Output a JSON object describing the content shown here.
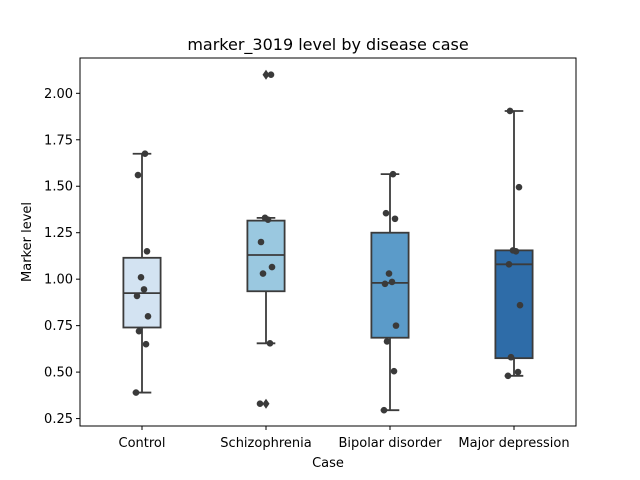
{
  "chart_data": {
    "type": "box",
    "title": "marker_3019 level by disease case",
    "xlabel": "Case",
    "ylabel": "Marker level",
    "ylim": [
      0.21,
      2.19
    ],
    "yticks": [
      "0.25",
      "0.50",
      "0.75",
      "1.00",
      "1.25",
      "1.50",
      "1.75",
      "2.00"
    ],
    "ytick_values": [
      0.25,
      0.5,
      0.75,
      1.0,
      1.25,
      1.5,
      1.75,
      2.0
    ],
    "grid": false,
    "categories": [
      "Control",
      "Schizophrenia",
      "Bipolar disorder",
      "Major depression"
    ],
    "colors": [
      "#d3e3f2",
      "#9ac8e0",
      "#5b9bc9",
      "#2e6ca8"
    ],
    "boxes": [
      {
        "q1": 0.74,
        "median": 0.925,
        "q3": 1.115,
        "whisker_low": 0.39,
        "whisker_high": 1.675,
        "outliers": []
      },
      {
        "q1": 0.935,
        "median": 1.13,
        "q3": 1.315,
        "whisker_low": 0.655,
        "whisker_high": 1.33,
        "outliers": [
          2.1,
          0.33
        ]
      },
      {
        "q1": 0.685,
        "median": 0.98,
        "q3": 1.25,
        "whisker_low": 0.295,
        "whisker_high": 1.565,
        "outliers": []
      },
      {
        "q1": 0.575,
        "median": 1.08,
        "q3": 1.155,
        "whisker_low": 0.48,
        "whisker_high": 1.905,
        "outliers": []
      }
    ],
    "points": [
      [
        0.39,
        0.65,
        0.72,
        0.8,
        0.91,
        0.945,
        1.01,
        1.15,
        1.56,
        1.675
      ],
      [
        0.33,
        0.655,
        1.03,
        1.065,
        1.2,
        1.32,
        1.33,
        2.1
      ],
      [
        0.295,
        0.505,
        0.665,
        0.75,
        0.975,
        0.985,
        1.03,
        1.325,
        1.355,
        1.565
      ],
      [
        0.48,
        0.5,
        0.58,
        0.86,
        1.08,
        1.15,
        1.155,
        1.495,
        1.905
      ]
    ]
  }
}
